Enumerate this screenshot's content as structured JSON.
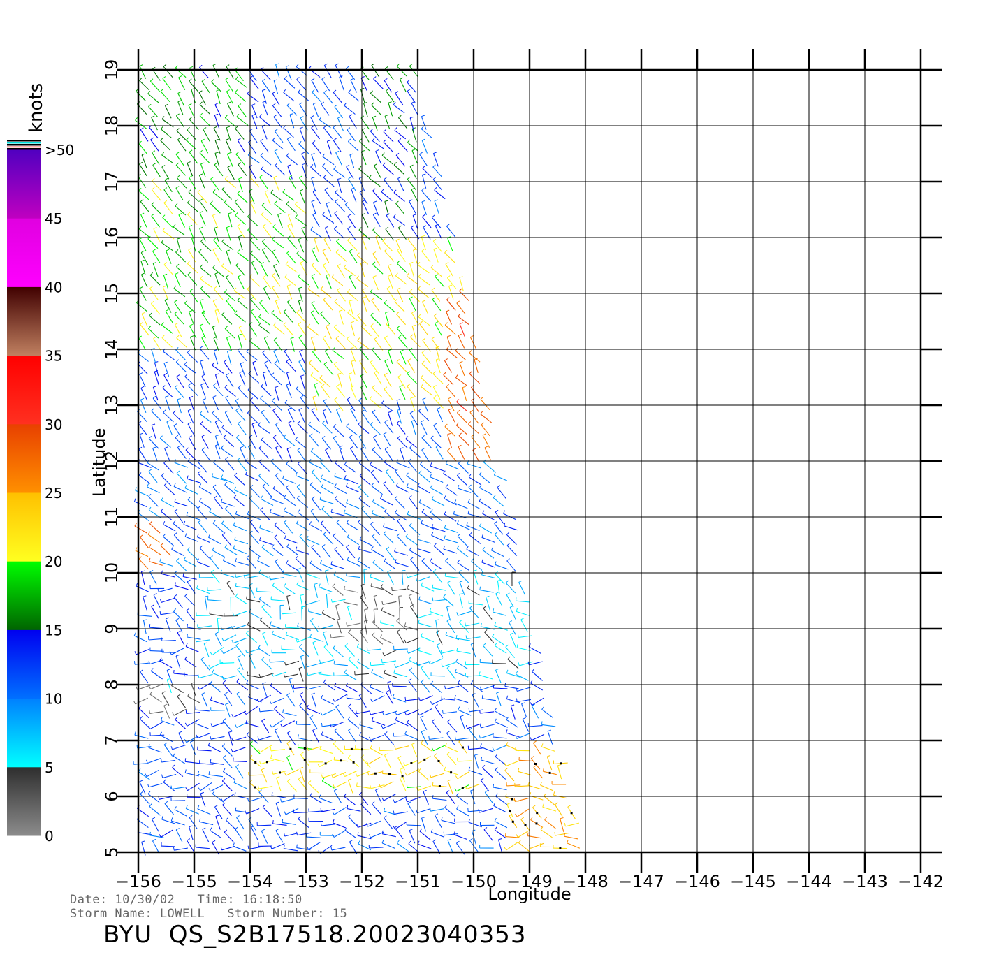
{
  "chart_data": {
    "type": "scatter",
    "subtype": "wind-vector-field",
    "xlabel": "Longitude",
    "ylabel": "Latitude",
    "xlim": [
      -156,
      -142
    ],
    "ylim": [
      5,
      19
    ],
    "x_ticks": [
      -156,
      -155,
      -154,
      -153,
      -152,
      -151,
      -150,
      -149,
      -148,
      -147,
      -146,
      -145,
      -144,
      -143,
      -142
    ],
    "y_ticks": [
      5,
      6,
      7,
      8,
      9,
      10,
      11,
      12,
      13,
      14,
      15,
      16,
      17,
      18,
      19
    ],
    "grid": true,
    "swath_corners_lon_lat": [
      [
        -156,
        19
      ],
      [
        -151,
        19
      ],
      [
        -148.1,
        5
      ],
      [
        -156,
        5
      ]
    ],
    "colorbar": {
      "unit_label": "knots",
      "tick_labels": [
        "0",
        "5",
        "10",
        "15",
        "20",
        "25",
        "30",
        "35",
        "40",
        "45",
        ">50"
      ],
      "bands": [
        {
          "range": [
            0,
            5
          ],
          "from": "#8c8c8c",
          "to": "#2e2e2e"
        },
        {
          "range": [
            5,
            10
          ],
          "from": "#00ffff",
          "to": "#0080ff"
        },
        {
          "range": [
            10,
            15
          ],
          "from": "#0070ff",
          "to": "#0000f0"
        },
        {
          "range": [
            15,
            20
          ],
          "from": "#006400",
          "to": "#00ff00"
        },
        {
          "range": [
            20,
            25
          ],
          "from": "#ffff20",
          "to": "#ffc000"
        },
        {
          "range": [
            25,
            30
          ],
          "from": "#ff9000",
          "to": "#e84000"
        },
        {
          "range": [
            30,
            35
          ],
          "from": "#ff3020",
          "to": "#ff0000"
        },
        {
          "range": [
            35,
            40
          ],
          "from": "#c08060",
          "to": "#400000"
        },
        {
          "range": [
            40,
            45
          ],
          "from": "#ff00ff",
          "to": "#e000e0"
        },
        {
          "range": [
            45,
            50
          ],
          "from": "#c000c0",
          "to": "#5000c0"
        }
      ]
    },
    "speed_regions_knots": [
      {
        "lat_range": [
          17,
          19
        ],
        "lon_range": [
          -156,
          -154
        ],
        "speed": 17
      },
      {
        "lat_range": [
          16,
          19
        ],
        "lon_range": [
          -154,
          -152
        ],
        "speed": 12
      },
      {
        "lat_range": [
          15,
          19
        ],
        "lon_range": [
          -152,
          -151
        ],
        "speed": 15
      },
      {
        "lat_range": [
          14,
          17
        ],
        "lon_range": [
          -156,
          -153
        ],
        "speed": 19
      },
      {
        "lat_range": [
          13,
          16
        ],
        "lon_range": [
          -153,
          -150
        ],
        "speed": 21
      },
      {
        "lat_range": [
          12,
          15
        ],
        "lon_range": [
          -150.5,
          -149
        ],
        "speed": 28
      },
      {
        "lat_range": [
          12,
          14
        ],
        "lon_range": [
          -156,
          -153
        ],
        "speed": 12
      },
      {
        "lat_range": [
          10,
          12
        ],
        "lon_range": [
          -156,
          -149
        ],
        "speed": 11
      },
      {
        "lat_range": [
          10,
          11
        ],
        "lon_range": [
          -156,
          -155.5
        ],
        "speed": 28
      },
      {
        "lat_range": [
          8,
          10
        ],
        "lon_range": [
          -155,
          -149
        ],
        "speed": 7
      },
      {
        "lat_range": [
          8.7,
          9.8
        ],
        "lon_range": [
          -152.5,
          -151
        ],
        "speed": 3
      },
      {
        "lat_range": [
          7,
          8
        ],
        "lon_range": [
          -156,
          -155
        ],
        "speed": 3
      },
      {
        "lat_range": [
          5,
          7.5
        ],
        "lon_range": [
          -156,
          -148
        ],
        "speed": 12
      },
      {
        "lat_range": [
          5,
          7
        ],
        "lon_range": [
          -149.5,
          -148.1
        ],
        "speed": 24
      },
      {
        "lat_range": [
          6,
          7
        ],
        "lon_range": [
          -154,
          -150
        ],
        "speed": 22
      }
    ]
  },
  "header": {
    "line1": "Date: 10/30/02   Time: 16:18:50",
    "line2": "Storm Name: LOWELL   Storm Number: 15",
    "title": "BYU  QS_S2B17518.20023040353"
  }
}
